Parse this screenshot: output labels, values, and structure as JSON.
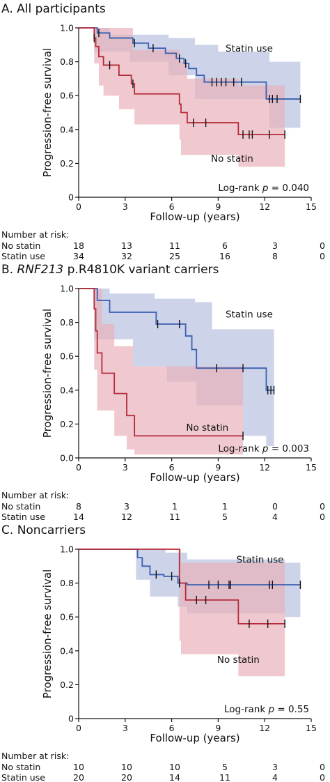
{
  "chart_data": [
    {
      "type": "line",
      "panel_letter": "A.",
      "title": "All participants",
      "title_italic": "",
      "xlabel": "Follow-up (years)",
      "ylabel": "Progression-free survival",
      "xlim": [
        0,
        15
      ],
      "ylim": [
        0,
        1.0
      ],
      "xticks": [
        0,
        3,
        6,
        9,
        12,
        15
      ],
      "xtick_labels": [
        "0",
        "3",
        "6",
        "9",
        "12",
        "15"
      ],
      "yticks": [
        0,
        0.2,
        0.4,
        0.6,
        0.8,
        1.0
      ],
      "ytick_labels": [
        "0",
        "0.2",
        "0.4",
        "0.6",
        "0.8",
        "1.0"
      ],
      "logrank": {
        "prefix": "Log-rank ",
        "p": "p",
        "suffix": " = 0.040"
      },
      "series": [
        {
          "name": "Statin use",
          "color": "#3a5fb0",
          "ci_color": "#b8c1df",
          "steps": [
            [
              0,
              1.0
            ],
            [
              1.2,
              0.97
            ],
            [
              2.0,
              0.94
            ],
            [
              3.5,
              0.91
            ],
            [
              4.5,
              0.88
            ],
            [
              5.6,
              0.85
            ],
            [
              6.3,
              0.82
            ],
            [
              6.8,
              0.79
            ],
            [
              7.1,
              0.76
            ],
            [
              7.6,
              0.72
            ],
            [
              8.1,
              0.68
            ],
            [
              12.1,
              0.58
            ],
            [
              14.3,
              0.58
            ]
          ],
          "censor": [
            [
              1.3,
              0.97
            ],
            [
              3.6,
              0.91
            ],
            [
              4.8,
              0.88
            ],
            [
              6.5,
              0.82
            ],
            [
              6.9,
              0.79
            ],
            [
              8.6,
              0.68
            ],
            [
              8.9,
              0.68
            ],
            [
              9.2,
              0.68
            ],
            [
              9.5,
              0.68
            ],
            [
              10.0,
              0.68
            ],
            [
              10.5,
              0.68
            ],
            [
              12.3,
              0.58
            ],
            [
              12.5,
              0.58
            ],
            [
              12.8,
              0.58
            ],
            [
              14.3,
              0.58
            ]
          ],
          "ci_upper": [
            [
              1.0,
              1.0
            ],
            [
              2.0,
              0.96
            ],
            [
              5.8,
              0.94
            ],
            [
              7.5,
              0.9
            ],
            [
              9.0,
              0.86
            ],
            [
              12.3,
              0.8
            ],
            [
              14.3,
              0.78
            ]
          ],
          "ci_lower": [
            [
              1.0,
              0.86
            ],
            [
              3.3,
              0.8
            ],
            [
              5.8,
              0.72
            ],
            [
              7.5,
              0.58
            ],
            [
              12.3,
              0.41
            ],
            [
              14.3,
              0.36
            ]
          ]
        },
        {
          "name": "No statin",
          "color": "#b52a3a",
          "ci_color": "#e8b2ba",
          "steps": [
            [
              0,
              1.0
            ],
            [
              1.0,
              0.94
            ],
            [
              1.1,
              0.89
            ],
            [
              1.3,
              0.83
            ],
            [
              1.6,
              0.78
            ],
            [
              2.6,
              0.72
            ],
            [
              3.4,
              0.67
            ],
            [
              3.6,
              0.61
            ],
            [
              6.5,
              0.55
            ],
            [
              6.6,
              0.5
            ],
            [
              7.0,
              0.44
            ],
            [
              10.3,
              0.37
            ],
            [
              13.3,
              0.37
            ]
          ],
          "censor": [
            [
              1.0,
              0.94
            ],
            [
              2.0,
              0.78
            ],
            [
              3.5,
              0.67
            ],
            [
              7.4,
              0.44
            ],
            [
              8.2,
              0.44
            ],
            [
              10.6,
              0.37
            ],
            [
              11.0,
              0.37
            ],
            [
              11.2,
              0.37
            ],
            [
              12.3,
              0.37
            ],
            [
              13.3,
              0.37
            ]
          ],
          "ci_upper": [
            [
              1.0,
              1.0
            ],
            [
              3.5,
              0.87
            ],
            [
              6.5,
              0.8
            ],
            [
              7.0,
              0.7
            ],
            [
              10.3,
              0.66
            ],
            [
              13.3,
              0.6
            ]
          ],
          "ci_lower": [
            [
              1.0,
              0.79
            ],
            [
              1.3,
              0.66
            ],
            [
              1.6,
              0.6
            ],
            [
              2.6,
              0.52
            ],
            [
              3.6,
              0.43
            ],
            [
              6.5,
              0.34
            ],
            [
              6.6,
              0.25
            ],
            [
              10.3,
              0.18
            ],
            [
              13.3,
              0.18
            ]
          ]
        }
      ],
      "series_labels": [
        {
          "text": "Statin use",
          "x": 11.0,
          "y": 0.86
        },
        {
          "text": "No statin",
          "x": 9.9,
          "y": 0.21
        }
      ],
      "risk_table": {
        "title": "Number at risk:",
        "rows": [
          {
            "label": "No statin",
            "values": [
              "18",
              "13",
              "11",
              "6",
              "3",
              "0"
            ]
          },
          {
            "label": "Statin use",
            "values": [
              "34",
              "32",
              "25",
              "16",
              "8",
              "0"
            ]
          }
        ]
      }
    },
    {
      "type": "line",
      "panel_letter": "B.",
      "title": " p.R4810K variant carriers",
      "title_italic": "RNF213",
      "xlabel": "Follow-up (years)",
      "ylabel": "Progression-free survival",
      "xlim": [
        0,
        15
      ],
      "ylim": [
        0,
        1.0
      ],
      "xticks": [
        0,
        3,
        6,
        9,
        12,
        15
      ],
      "xtick_labels": [
        "0",
        "3",
        "6",
        "9",
        "12",
        "15"
      ],
      "yticks": [
        0,
        0.2,
        0.4,
        0.6,
        0.8,
        1.0
      ],
      "ytick_labels": [
        "0.0",
        "0.2",
        "0.4",
        "0.6",
        "0.8",
        "1.0"
      ],
      "logrank": {
        "prefix": "Log-rank ",
        "p": "p",
        "suffix": " = 0.003"
      },
      "series": [
        {
          "name": "Statin use",
          "color": "#3a5fb0",
          "ci_color": "#b8c1df",
          "steps": [
            [
              0,
              1.0
            ],
            [
              1.2,
              0.93
            ],
            [
              2.0,
              0.86
            ],
            [
              5.0,
              0.79
            ],
            [
              6.9,
              0.72
            ],
            [
              7.3,
              0.64
            ],
            [
              7.6,
              0.53
            ],
            [
              12.1,
              0.4
            ],
            [
              12.6,
              0.4
            ]
          ],
          "censor": [
            [
              5.1,
              0.79
            ],
            [
              6.5,
              0.79
            ],
            [
              8.9,
              0.53
            ],
            [
              10.6,
              0.53
            ],
            [
              12.2,
              0.4
            ],
            [
              12.4,
              0.4
            ],
            [
              12.6,
              0.4
            ]
          ],
          "ci_upper": [
            [
              1.0,
              1.0
            ],
            [
              2.0,
              0.97
            ],
            [
              4.9,
              0.94
            ],
            [
              7.5,
              0.92
            ],
            [
              8.6,
              0.76
            ],
            [
              12.6,
              0.76
            ]
          ],
          "ci_lower": [
            [
              1.0,
              0.7
            ],
            [
              3.5,
              0.54
            ],
            [
              5.7,
              0.45
            ],
            [
              7.6,
              0.31
            ],
            [
              10.6,
              0.13
            ],
            [
              12.1,
              0.07
            ],
            [
              12.6,
              0.07
            ]
          ]
        },
        {
          "name": "No statin",
          "color": "#b52a3a",
          "ci_color": "#e8b2ba",
          "steps": [
            [
              0,
              1.0
            ],
            [
              1.0,
              0.88
            ],
            [
              1.1,
              0.75
            ],
            [
              1.2,
              0.62
            ],
            [
              1.5,
              0.5
            ],
            [
              2.3,
              0.38
            ],
            [
              3.1,
              0.25
            ],
            [
              3.6,
              0.13
            ],
            [
              10.6,
              0.13
            ]
          ],
          "censor": [
            [
              10.6,
              0.13
            ]
          ],
          "ci_upper": [
            [
              1.0,
              1.0
            ],
            [
              1.5,
              0.79
            ],
            [
              2.3,
              0.66
            ],
            [
              3.5,
              0.54
            ],
            [
              10.6,
              0.54
            ]
          ],
          "ci_lower": [
            [
              1.0,
              0.52
            ],
            [
              1.2,
              0.28
            ],
            [
              2.3,
              0.13
            ],
            [
              3.1,
              0.05
            ],
            [
              3.6,
              0.02
            ],
            [
              10.6,
              0.02
            ]
          ]
        }
      ],
      "series_labels": [
        {
          "text": "Statin use",
          "x": 11.0,
          "y": 0.83
        },
        {
          "text": "No statin",
          "x": 8.3,
          "y": 0.16
        }
      ],
      "risk_table": {
        "title": "Number at risk:",
        "rows": [
          {
            "label": "No statin",
            "values": [
              "8",
              "3",
              "1",
              "1",
              "0",
              "0"
            ]
          },
          {
            "label": "Statin use",
            "values": [
              "14",
              "12",
              "11",
              "5",
              "4",
              "0"
            ]
          }
        ]
      }
    },
    {
      "type": "line",
      "panel_letter": "C.",
      "title": "Noncarriers",
      "title_italic": "",
      "xlabel": "Follow-up (years)",
      "ylabel": "Progression-free survival",
      "xlim": [
        0,
        15
      ],
      "ylim": [
        0,
        1.0
      ],
      "xticks": [
        0,
        3,
        6,
        9,
        12,
        15
      ],
      "xtick_labels": [
        "0",
        "3",
        "6",
        "9",
        "12",
        "15"
      ],
      "yticks": [
        0,
        0.2,
        0.4,
        0.6,
        0.8,
        1.0
      ],
      "ytick_labels": [
        "0",
        "0.2",
        "0.4",
        "0.6",
        "0.8",
        "1.0"
      ],
      "logrank": {
        "prefix": "Log-rank ",
        "p": "p",
        "suffix": " = 0.55"
      },
      "series": [
        {
          "name": "Statin use",
          "color": "#3a5fb0",
          "ci_color": "#b8c1df",
          "steps": [
            [
              0,
              1.0
            ],
            [
              3.8,
              0.95
            ],
            [
              4.1,
              0.9
            ],
            [
              4.6,
              0.85
            ],
            [
              5.5,
              0.84
            ],
            [
              6.4,
              0.8
            ],
            [
              7.0,
              0.79
            ],
            [
              14.3,
              0.79
            ]
          ],
          "censor": [
            [
              5.0,
              0.85
            ],
            [
              6.0,
              0.84
            ],
            [
              6.5,
              0.8
            ],
            [
              8.4,
              0.79
            ],
            [
              9.0,
              0.79
            ],
            [
              9.7,
              0.79
            ],
            [
              9.8,
              0.79
            ],
            [
              12.3,
              0.79
            ],
            [
              12.5,
              0.79
            ],
            [
              14.3,
              0.79
            ]
          ],
          "ci_upper": [
            [
              3.7,
              1.0
            ],
            [
              5.6,
              0.98
            ],
            [
              7.0,
              0.94
            ],
            [
              13.3,
              0.92
            ],
            [
              14.3,
              0.91
            ]
          ],
          "ci_lower": [
            [
              3.7,
              0.82
            ],
            [
              4.6,
              0.72
            ],
            [
              6.4,
              0.66
            ],
            [
              7.0,
              0.62
            ],
            [
              13.3,
              0.6
            ],
            [
              14.3,
              0.6
            ]
          ]
        },
        {
          "name": "No statin",
          "color": "#b52a3a",
          "ci_color": "#e8b2ba",
          "steps": [
            [
              0,
              1.0
            ],
            [
              6.5,
              0.8
            ],
            [
              6.9,
              0.7
            ],
            [
              10.3,
              0.56
            ],
            [
              13.3,
              0.56
            ]
          ],
          "censor": [
            [
              6.5,
              0.8
            ],
            [
              7.6,
              0.7
            ],
            [
              8.2,
              0.7
            ],
            [
              11.0,
              0.56
            ],
            [
              12.2,
              0.56
            ],
            [
              13.3,
              0.56
            ]
          ],
          "ci_upper": [
            [
              6.5,
              1.0
            ],
            [
              6.6,
              0.92
            ],
            [
              10.3,
              0.92
            ],
            [
              13.3,
              0.9
            ]
          ],
          "ci_lower": [
            [
              6.5,
              0.46
            ],
            [
              6.6,
              0.38
            ],
            [
              10.3,
              0.25
            ],
            [
              13.3,
              0.25
            ]
          ]
        }
      ],
      "series_labels": [
        {
          "text": "Statin use",
          "x": 11.7,
          "y": 0.92
        },
        {
          "text": "No statin",
          "x": 10.3,
          "y": 0.33
        }
      ],
      "risk_table": {
        "title": "Number at risk:",
        "rows": [
          {
            "label": "No statin",
            "values": [
              "10",
              "10",
              "10",
              "5",
              "3",
              "0"
            ]
          },
          {
            "label": "Statin use",
            "values": [
              "20",
              "20",
              "14",
              "11",
              "4",
              "0"
            ]
          }
        ]
      }
    }
  ]
}
